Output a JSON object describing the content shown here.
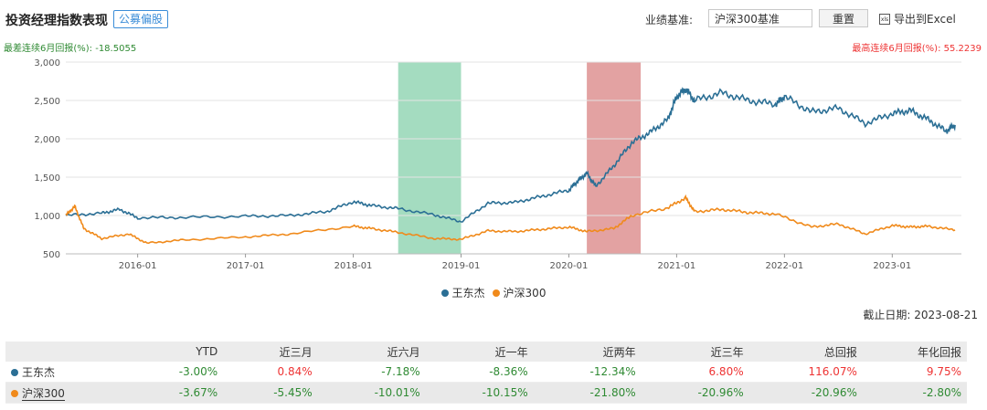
{
  "header": {
    "title": "投资经理指数表现",
    "tag": "公募偏股",
    "benchmark_label": "业绩基准:",
    "benchmark_value": "沪深300基准",
    "reset_label": "重置",
    "export_label": "导出到Excel"
  },
  "stats": {
    "worst_6m": "最差连续6月回报(%): -18.5055",
    "best_6m": "最高连续6月回报(%): 55.2239"
  },
  "as_of": "截止日期: 2023-08-21",
  "chart_data": {
    "type": "line",
    "y_ticks": [
      "500",
      "1,000",
      "1,500",
      "2,000",
      "2,500",
      "3,000"
    ],
    "x_ticks": [
      "2016-01",
      "2017-01",
      "2018-01",
      "2019-01",
      "2020-01",
      "2021-01",
      "2022-01",
      "2023-01"
    ],
    "ylim": [
      500,
      3000
    ],
    "grid": true,
    "legend_position": "bottom",
    "shaded_periods": [
      {
        "start": "2018-06",
        "end": "2019-01",
        "color": "#a4dcc0"
      },
      {
        "start": "2020-03",
        "end": "2020-09",
        "color": "#e3a2a2"
      }
    ],
    "series": [
      {
        "name": "王东杰",
        "color": "#2b6f95",
        "x": [
          "2015-05",
          "2015-09",
          "2015-11",
          "2016-01",
          "2016-06",
          "2017-01",
          "2017-06",
          "2017-10",
          "2018-01",
          "2018-03",
          "2018-06",
          "2018-10",
          "2019-01",
          "2019-04",
          "2019-07",
          "2019-10",
          "2020-01",
          "2020-02",
          "2020-03",
          "2020-04",
          "2020-06",
          "2020-08",
          "2020-10",
          "2020-12",
          "2021-01",
          "2021-02",
          "2021-03",
          "2021-06",
          "2021-09",
          "2021-12",
          "2022-01",
          "2022-04",
          "2022-07",
          "2022-10",
          "2023-01",
          "2023-03",
          "2023-05",
          "2023-07",
          "2023-08"
        ],
        "y": [
          1000,
          1030,
          1080,
          970,
          975,
          990,
          1000,
          1050,
          1180,
          1130,
          1090,
          1010,
          920,
          1160,
          1170,
          1250,
          1330,
          1450,
          1550,
          1380,
          1650,
          1950,
          2080,
          2250,
          2550,
          2650,
          2500,
          2600,
          2500,
          2450,
          2550,
          2350,
          2400,
          2200,
          2330,
          2370,
          2250,
          2100,
          2180
        ]
      },
      {
        "name": "沪深300",
        "color": "#f08a1b",
        "x": [
          "2015-05",
          "2015-06",
          "2015-07",
          "2015-09",
          "2015-12",
          "2016-02",
          "2016-06",
          "2017-01",
          "2017-06",
          "2018-01",
          "2018-03",
          "2018-06",
          "2018-10",
          "2019-01",
          "2019-04",
          "2019-07",
          "2019-10",
          "2020-01",
          "2020-03",
          "2020-06",
          "2020-08",
          "2020-12",
          "2021-02",
          "2021-03",
          "2021-06",
          "2021-09",
          "2021-12",
          "2022-04",
          "2022-07",
          "2022-10",
          "2023-01",
          "2023-03",
          "2023-05",
          "2023-08"
        ],
        "y": [
          1000,
          1120,
          830,
          700,
          760,
          640,
          680,
          720,
          760,
          860,
          830,
          780,
          700,
          690,
          800,
          790,
          820,
          850,
          790,
          830,
          1000,
          1100,
          1230,
          1050,
          1080,
          1040,
          1020,
          850,
          890,
          760,
          870,
          850,
          860,
          810
        ]
      }
    ]
  },
  "table": {
    "headers": [
      "YTD",
      "近三月",
      "近六月",
      "近一年",
      "近两年",
      "近三年",
      "总回报",
      "年化回报"
    ],
    "rows": [
      {
        "name": "王东杰",
        "color": "#2b6f95",
        "values": [
          "-3.00%",
          "0.84%",
          "-7.18%",
          "-8.36%",
          "-12.34%",
          "6.80%",
          "116.07%",
          "9.75%"
        ]
      },
      {
        "name": "沪深300",
        "color": "#f08a1b",
        "values": [
          "-3.67%",
          "-5.45%",
          "-10.01%",
          "-10.15%",
          "-21.80%",
          "-20.96%",
          "-20.96%",
          "-2.80%"
        ]
      }
    ]
  }
}
